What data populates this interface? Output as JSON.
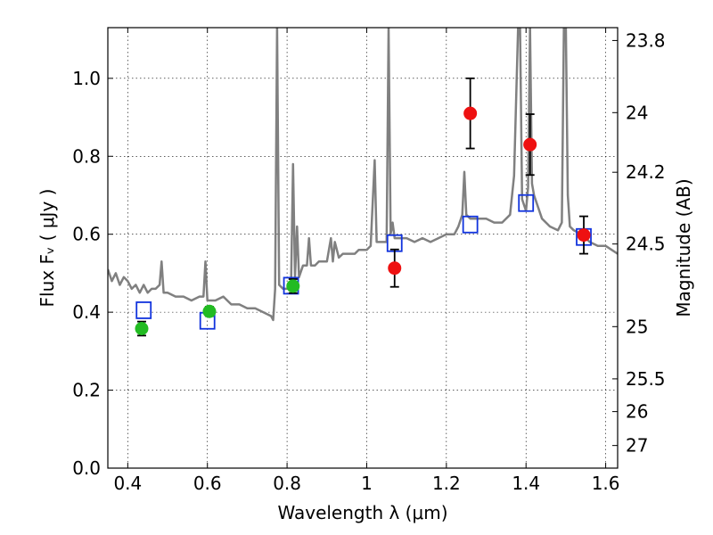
{
  "chart_data": {
    "type": "scatter",
    "xlabel": "Wavelength  λ (μm)",
    "ylabel": "Flux  Fᵥ  ( μJy )",
    "y2label": "Magnitude (AB)",
    "xlim": [
      0.35,
      1.63
    ],
    "ylim": [
      0.0,
      1.13
    ],
    "grid": true,
    "x_ticks": [
      {
        "value": 0.4,
        "label": "0.4"
      },
      {
        "value": 0.6,
        "label": "0.6"
      },
      {
        "value": 0.8,
        "label": "0.8"
      },
      {
        "value": 1.0,
        "label": "1"
      },
      {
        "value": 1.2,
        "label": "1.2"
      },
      {
        "value": 1.4,
        "label": "1.4"
      },
      {
        "value": 1.6,
        "label": "1.6"
      }
    ],
    "y_ticks": [
      {
        "value": 0.0,
        "label": "0.0"
      },
      {
        "value": 0.2,
        "label": "0.2"
      },
      {
        "value": 0.4,
        "label": "0.4"
      },
      {
        "value": 0.6,
        "label": "0.6"
      },
      {
        "value": 0.8,
        "label": "0.8"
      },
      {
        "value": 1.0,
        "label": "1.0"
      }
    ],
    "y2_ticks": [
      {
        "label": "23.8",
        "flux": 1.097
      },
      {
        "label": "24",
        "flux": 0.912
      },
      {
        "label": "24.2",
        "flux": 0.759
      },
      {
        "label": "24.5",
        "flux": 0.575
      },
      {
        "label": "25",
        "flux": 0.363
      },
      {
        "label": "25.5",
        "flux": 0.229
      },
      {
        "label": "26",
        "flux": 0.145
      },
      {
        "label": "27",
        "flux": 0.058
      }
    ],
    "colors": {
      "model": "#808080",
      "green_points": "#22bb22",
      "red_points": "#ee1111",
      "squares": "#1133dd",
      "errorbar": "#000000"
    },
    "series": [
      {
        "kind": "model_spectrum",
        "x": [
          0.35,
          0.36,
          0.37,
          0.38,
          0.39,
          0.4,
          0.41,
          0.42,
          0.43,
          0.44,
          0.45,
          0.46,
          0.47,
          0.48,
          0.485,
          0.49,
          0.5,
          0.52,
          0.54,
          0.56,
          0.58,
          0.59,
          0.595,
          0.6,
          0.62,
          0.64,
          0.66,
          0.68,
          0.7,
          0.72,
          0.74,
          0.76,
          0.765,
          0.77,
          0.775,
          0.78,
          0.79,
          0.8,
          0.81,
          0.815,
          0.82,
          0.825,
          0.83,
          0.84,
          0.85,
          0.855,
          0.86,
          0.87,
          0.88,
          0.9,
          0.91,
          0.915,
          0.92,
          0.93,
          0.94,
          0.95,
          0.96,
          0.97,
          0.98,
          1.0,
          1.01,
          1.02,
          1.025,
          1.03,
          1.04,
          1.05,
          1.055,
          1.06,
          1.065,
          1.07,
          1.08,
          1.1,
          1.12,
          1.14,
          1.16,
          1.18,
          1.2,
          1.22,
          1.23,
          1.24,
          1.245,
          1.25,
          1.26,
          1.28,
          1.3,
          1.32,
          1.34,
          1.36,
          1.37,
          1.38,
          1.385,
          1.39,
          1.4,
          1.405,
          1.41,
          1.415,
          1.42,
          1.44,
          1.46,
          1.48,
          1.49,
          1.495,
          1.5,
          1.505,
          1.51,
          1.52,
          1.54,
          1.56,
          1.58,
          1.6,
          1.63
        ],
        "y": [
          0.51,
          0.48,
          0.5,
          0.47,
          0.49,
          0.48,
          0.46,
          0.47,
          0.45,
          0.47,
          0.45,
          0.46,
          0.46,
          0.47,
          0.53,
          0.45,
          0.45,
          0.44,
          0.44,
          0.43,
          0.44,
          0.44,
          0.53,
          0.43,
          0.43,
          0.44,
          0.42,
          0.42,
          0.41,
          0.41,
          0.4,
          0.39,
          0.38,
          0.46,
          1.13,
          0.47,
          0.46,
          0.46,
          0.47,
          0.78,
          0.49,
          0.62,
          0.49,
          0.52,
          0.52,
          0.59,
          0.52,
          0.52,
          0.53,
          0.53,
          0.59,
          0.53,
          0.58,
          0.54,
          0.55,
          0.55,
          0.55,
          0.55,
          0.56,
          0.56,
          0.57,
          0.79,
          0.58,
          0.58,
          0.58,
          0.58,
          1.13,
          0.6,
          0.63,
          0.59,
          0.59,
          0.59,
          0.58,
          0.59,
          0.58,
          0.59,
          0.6,
          0.6,
          0.62,
          0.65,
          0.76,
          0.65,
          0.64,
          0.64,
          0.64,
          0.63,
          0.63,
          0.65,
          0.75,
          1.13,
          1.13,
          0.69,
          0.66,
          0.72,
          1.13,
          0.73,
          0.7,
          0.64,
          0.62,
          0.61,
          0.63,
          1.13,
          1.13,
          0.7,
          0.62,
          0.61,
          0.6,
          0.58,
          0.57,
          0.57,
          0.55
        ]
      },
      {
        "kind": "green_points",
        "points": [
          {
            "x": 0.435,
            "y": 0.358,
            "err": 0.018
          },
          {
            "x": 0.605,
            "y": 0.402,
            "err": 0.012
          },
          {
            "x": 0.815,
            "y": 0.467,
            "err": 0.018
          }
        ]
      },
      {
        "kind": "red_points",
        "points": [
          {
            "x": 1.07,
            "y": 0.513,
            "err": 0.048
          },
          {
            "x": 1.26,
            "y": 0.91,
            "err": 0.09
          },
          {
            "x": 1.41,
            "y": 0.83,
            "err": 0.078
          },
          {
            "x": 1.545,
            "y": 0.598,
            "err": 0.048
          }
        ]
      },
      {
        "kind": "squares",
        "points": [
          {
            "x": 0.44,
            "y": 0.405
          },
          {
            "x": 0.6,
            "y": 0.378
          },
          {
            "x": 0.81,
            "y": 0.468
          },
          {
            "x": 1.07,
            "y": 0.577
          },
          {
            "x": 1.26,
            "y": 0.625
          },
          {
            "x": 1.4,
            "y": 0.68
          },
          {
            "x": 1.545,
            "y": 0.593
          }
        ]
      }
    ]
  }
}
